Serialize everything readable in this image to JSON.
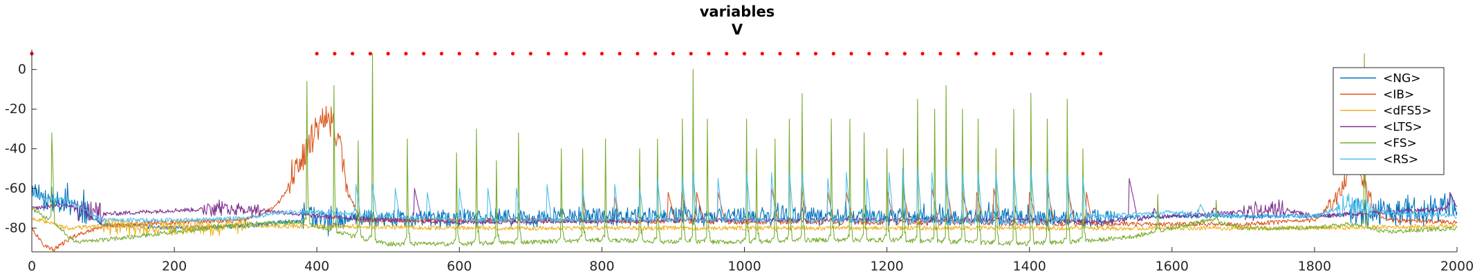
{
  "chart_data": {
    "type": "line",
    "title": "variables",
    "subtitle": "V",
    "xlabel": "",
    "ylabel": "",
    "xlim": [
      0,
      2000
    ],
    "ylim": [
      -92,
      10
    ],
    "x_ticks": [
      0,
      200,
      400,
      600,
      800,
      1000,
      1200,
      1400,
      1600,
      1800,
      2000
    ],
    "x_tick_labels": [
      "0",
      "200",
      "400",
      "600",
      "800",
      "1000",
      "1200",
      "1400",
      "1600",
      "1800",
      "2000"
    ],
    "y_ticks": [
      0,
      -20,
      -40,
      -60,
      -80
    ],
    "y_tick_labels": [
      "0",
      "-20",
      "-40",
      "-60",
      "-80"
    ],
    "grid": false,
    "legend_position": "top-right",
    "spike_markers": {
      "color": "#ff0000",
      "y": 8,
      "x": [
        0,
        400,
        425,
        450,
        475,
        500,
        525,
        550,
        575,
        600,
        625,
        650,
        675,
        700,
        725,
        750,
        775,
        800,
        825,
        850,
        875,
        900,
        925,
        950,
        975,
        1000,
        1025,
        1050,
        1075,
        1100,
        1125,
        1150,
        1175,
        1200,
        1225,
        1250,
        1275,
        1300,
        1325,
        1350,
        1375,
        1400,
        1425,
        1450,
        1475,
        1500
      ]
    },
    "series": [
      {
        "name": "<NG>",
        "color": "#0072BD",
        "baseline": [
          [
            0,
            -62
          ],
          [
            60,
            -70
          ],
          [
            100,
            -78
          ],
          [
            200,
            -80
          ],
          [
            300,
            -79
          ],
          [
            350,
            -77
          ],
          [
            400,
            -76
          ],
          [
            600,
            -75
          ],
          [
            900,
            -74
          ],
          [
            1200,
            -74
          ],
          [
            1500,
            -75
          ],
          [
            1600,
            -74
          ],
          [
            1800,
            -74
          ],
          [
            1900,
            -72
          ],
          [
            2000,
            -70
          ]
        ],
        "bursts": [
          [
            0,
            80,
            8,
            12
          ],
          [
            380,
            420,
            5,
            15
          ],
          [
            420,
            1520,
            4,
            8
          ],
          [
            1850,
            2000,
            5,
            14
          ]
        ],
        "events": []
      },
      {
        "name": "<IB>",
        "color": "#D95319",
        "baseline": [
          [
            0,
            -80
          ],
          [
            15,
            -88
          ],
          [
            30,
            -91
          ],
          [
            60,
            -84
          ],
          [
            100,
            -79
          ],
          [
            200,
            -77
          ],
          [
            300,
            -76
          ],
          [
            340,
            -70
          ],
          [
            360,
            -60
          ],
          [
            380,
            -45
          ],
          [
            400,
            -30
          ],
          [
            415,
            -25
          ],
          [
            430,
            -35
          ],
          [
            445,
            -62
          ],
          [
            460,
            -76
          ],
          [
            600,
            -76
          ],
          [
            1000,
            -77
          ],
          [
            1500,
            -78
          ],
          [
            1700,
            -78
          ],
          [
            1800,
            -76
          ],
          [
            1830,
            -65
          ],
          [
            1845,
            -55
          ],
          [
            1860,
            -45
          ],
          [
            1880,
            -70
          ],
          [
            1900,
            -76
          ],
          [
            2000,
            -77
          ]
        ],
        "bursts": [
          [
            360,
            445,
            6,
            15
          ],
          [
            1820,
            1880,
            5,
            8
          ]
        ],
        "events": [
          [
            773,
            -64,
            6
          ],
          [
            818,
            -64,
            6
          ],
          [
            893,
            -62,
            10
          ],
          [
            912,
            -62,
            10
          ],
          [
            933,
            -62,
            10
          ],
          [
            963,
            -62,
            10
          ],
          [
            1038,
            -60,
            10
          ],
          [
            1080,
            -60,
            8
          ],
          [
            1117,
            -62,
            8
          ],
          [
            1143,
            -62,
            10
          ],
          [
            1200,
            -60,
            10
          ],
          [
            1222,
            -60,
            10
          ],
          [
            1263,
            -60,
            10
          ],
          [
            1283,
            -58,
            10
          ],
          [
            1306,
            -62,
            10
          ],
          [
            1326,
            -62,
            10
          ],
          [
            1350,
            -60,
            10
          ],
          [
            1400,
            -62,
            10
          ],
          [
            1425,
            -60,
            10
          ],
          [
            1455,
            -62,
            8
          ],
          [
            1480,
            -62,
            8
          ]
        ]
      },
      {
        "name": "<dFS5>",
        "color": "#EDB120",
        "baseline": [
          [
            0,
            -75
          ],
          [
            50,
            -80
          ],
          [
            100,
            -79
          ],
          [
            200,
            -80
          ],
          [
            300,
            -79
          ],
          [
            400,
            -79
          ],
          [
            600,
            -80
          ],
          [
            1000,
            -80
          ],
          [
            1400,
            -80
          ],
          [
            1600,
            -80
          ],
          [
            1800,
            -80
          ],
          [
            2000,
            -79
          ]
        ],
        "bursts": [
          [
            100,
            300,
            1,
            8
          ]
        ],
        "events": []
      },
      {
        "name": "<LTS>",
        "color": "#7E2F8E",
        "baseline": [
          [
            0,
            -70
          ],
          [
            50,
            -68
          ],
          [
            70,
            -72
          ],
          [
            100,
            -73
          ],
          [
            200,
            -71
          ],
          [
            300,
            -70
          ],
          [
            400,
            -74
          ],
          [
            500,
            -76
          ],
          [
            600,
            -77
          ],
          [
            1000,
            -76
          ],
          [
            1400,
            -76
          ],
          [
            1500,
            -77
          ],
          [
            1600,
            -74
          ],
          [
            1700,
            -72
          ],
          [
            1750,
            -70
          ],
          [
            1800,
            -74
          ],
          [
            1900,
            -72
          ],
          [
            2000,
            -70
          ]
        ],
        "bursts": [
          [
            60,
            100,
            5,
            10
          ],
          [
            240,
            320,
            4,
            6
          ],
          [
            1700,
            1760,
            4,
            8
          ]
        ],
        "events": [
          [
            537,
            -60,
            10
          ],
          [
            1540,
            -55,
            12
          ],
          [
            1575,
            -70,
            6
          ],
          [
            1660,
            -70,
            6
          ],
          [
            1990,
            -62,
            10
          ]
        ]
      },
      {
        "name": "<FS>",
        "color": "#77AC30",
        "baseline": [
          [
            0,
            -70
          ],
          [
            40,
            -80
          ],
          [
            60,
            -87
          ],
          [
            100,
            -86
          ],
          [
            200,
            -82
          ],
          [
            300,
            -78
          ],
          [
            380,
            -77
          ],
          [
            450,
            -84
          ],
          [
            500,
            -88
          ],
          [
            600,
            -88
          ],
          [
            700,
            -87
          ],
          [
            800,
            -86
          ],
          [
            900,
            -87
          ],
          [
            1000,
            -87
          ],
          [
            1100,
            -86
          ],
          [
            1200,
            -86
          ],
          [
            1300,
            -87
          ],
          [
            1400,
            -88
          ],
          [
            1500,
            -86
          ],
          [
            1550,
            -84
          ],
          [
            1600,
            -80
          ],
          [
            1650,
            -76
          ],
          [
            1700,
            -80
          ],
          [
            1800,
            -80
          ],
          [
            1850,
            -78
          ],
          [
            1900,
            -82
          ],
          [
            2000,
            -80
          ]
        ],
        "bursts": [],
        "events": [
          [
            28,
            -32,
            4
          ],
          [
            386,
            -6,
            3
          ],
          [
            424,
            -8,
            3
          ],
          [
            458,
            -36,
            3
          ],
          [
            478,
            8,
            3
          ],
          [
            527,
            -35,
            3
          ],
          [
            596,
            -42,
            3
          ],
          [
            624,
            -30,
            3
          ],
          [
            652,
            -46,
            3
          ],
          [
            683,
            -32,
            3
          ],
          [
            743,
            -40,
            3
          ],
          [
            773,
            -40,
            3
          ],
          [
            805,
            -35,
            3
          ],
          [
            853,
            -40,
            3
          ],
          [
            878,
            -35,
            3
          ],
          [
            913,
            -25,
            3
          ],
          [
            928,
            0,
            3
          ],
          [
            948,
            -25,
            3
          ],
          [
            1003,
            -25,
            3
          ],
          [
            1017,
            -40,
            3
          ],
          [
            1043,
            -35,
            3
          ],
          [
            1063,
            -25,
            3
          ],
          [
            1081,
            -12,
            3
          ],
          [
            1122,
            -25,
            3
          ],
          [
            1148,
            -25,
            3
          ],
          [
            1168,
            -32,
            3
          ],
          [
            1200,
            -40,
            3
          ],
          [
            1223,
            -40,
            3
          ],
          [
            1243,
            -15,
            3
          ],
          [
            1267,
            -20,
            3
          ],
          [
            1283,
            -8,
            3
          ],
          [
            1306,
            -20,
            3
          ],
          [
            1328,
            -25,
            3
          ],
          [
            1353,
            -40,
            3
          ],
          [
            1378,
            -20,
            3
          ],
          [
            1402,
            -12,
            3
          ],
          [
            1425,
            -25,
            3
          ],
          [
            1453,
            -15,
            3
          ],
          [
            1475,
            -40,
            3
          ],
          [
            1580,
            -63,
            3
          ],
          [
            1662,
            -66,
            3
          ],
          [
            1870,
            8,
            3
          ]
        ]
      },
      {
        "name": "<RS>",
        "color": "#4DBEEE",
        "baseline": [
          [
            0,
            -64
          ],
          [
            50,
            -66
          ],
          [
            100,
            -76
          ],
          [
            200,
            -76
          ],
          [
            300,
            -75
          ],
          [
            350,
            -72
          ],
          [
            400,
            -72
          ],
          [
            600,
            -76
          ],
          [
            1000,
            -76
          ],
          [
            1400,
            -77
          ],
          [
            1500,
            -74
          ],
          [
            1600,
            -72
          ],
          [
            1700,
            -74
          ],
          [
            1800,
            -74
          ],
          [
            1850,
            -68
          ],
          [
            1900,
            -72
          ],
          [
            2000,
            -74
          ]
        ],
        "bursts": [
          [
            1830,
            1880,
            5,
            10
          ]
        ],
        "events": [
          [
            455,
            -58,
            6
          ],
          [
            478,
            -58,
            6
          ],
          [
            510,
            -60,
            6
          ],
          [
            555,
            -62,
            6
          ],
          [
            600,
            -60,
            6
          ],
          [
            640,
            -60,
            6
          ],
          [
            680,
            -60,
            6
          ],
          [
            723,
            -58,
            6
          ],
          [
            773,
            -60,
            6
          ],
          [
            818,
            -58,
            6
          ],
          [
            853,
            -60,
            6
          ],
          [
            878,
            -55,
            6
          ],
          [
            913,
            -55,
            6
          ],
          [
            928,
            -52,
            6
          ],
          [
            963,
            -55,
            6
          ],
          [
            1003,
            -52,
            6
          ],
          [
            1038,
            -52,
            6
          ],
          [
            1063,
            -52,
            6
          ],
          [
            1081,
            -52,
            6
          ],
          [
            1117,
            -55,
            6
          ],
          [
            1143,
            -52,
            6
          ],
          [
            1172,
            -55,
            6
          ],
          [
            1203,
            -52,
            6
          ],
          [
            1222,
            -50,
            6
          ],
          [
            1243,
            -50,
            6
          ],
          [
            1263,
            -52,
            6
          ],
          [
            1283,
            -50,
            6
          ],
          [
            1306,
            -52,
            6
          ],
          [
            1328,
            -52,
            6
          ],
          [
            1353,
            -52,
            6
          ],
          [
            1378,
            -50,
            6
          ],
          [
            1402,
            -50,
            6
          ],
          [
            1425,
            -52,
            6
          ],
          [
            1453,
            -52,
            6
          ],
          [
            1475,
            -55,
            6
          ],
          [
            1640,
            -68,
            6
          ]
        ]
      }
    ]
  }
}
